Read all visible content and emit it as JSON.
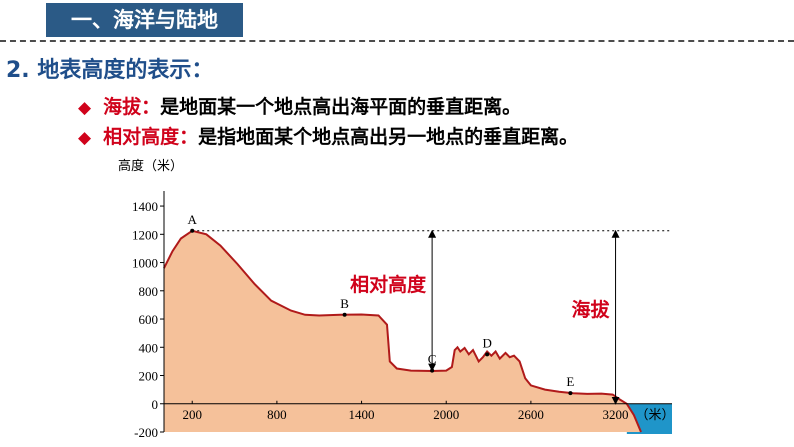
{
  "header": {
    "title": "一、海洋与陆地"
  },
  "section": {
    "heading": "2. 地表高度的表示："
  },
  "bullets": [
    {
      "term": "海拔：",
      "text": "是地面某一个地点高出海平面的垂直距离。"
    },
    {
      "term": "相对高度：",
      "text": "是指地面某个地点高出另一地点的垂直距离。"
    }
  ],
  "chart_data": {
    "type": "area",
    "ylabel": "高度（米）",
    "x_unit": "（米）",
    "yticks": [
      -200,
      0,
      200,
      400,
      600,
      800,
      1000,
      1200,
      1400
    ],
    "xticks": [
      200,
      800,
      1400,
      2000,
      2600,
      3200
    ],
    "ylim": [
      -200,
      1450
    ],
    "xlim": [
      0,
      3600
    ],
    "profile": [
      [
        0,
        960
      ],
      [
        60,
        1080
      ],
      [
        120,
        1170
      ],
      [
        200,
        1225
      ],
      [
        300,
        1200
      ],
      [
        400,
        1120
      ],
      [
        520,
        990
      ],
      [
        640,
        850
      ],
      [
        760,
        730
      ],
      [
        900,
        660
      ],
      [
        1000,
        630
      ],
      [
        1100,
        625
      ],
      [
        1250,
        630
      ],
      [
        1400,
        632
      ],
      [
        1520,
        625
      ],
      [
        1580,
        560
      ],
      [
        1600,
        300
      ],
      [
        1650,
        250
      ],
      [
        1750,
        235
      ],
      [
        1900,
        232
      ],
      [
        2000,
        235
      ],
      [
        2040,
        260
      ],
      [
        2060,
        380
      ],
      [
        2080,
        400
      ],
      [
        2100,
        370
      ],
      [
        2130,
        395
      ],
      [
        2160,
        350
      ],
      [
        2190,
        380
      ],
      [
        2230,
        300
      ],
      [
        2260,
        330
      ],
      [
        2290,
        370
      ],
      [
        2320,
        340
      ],
      [
        2350,
        370
      ],
      [
        2380,
        320
      ],
      [
        2420,
        360
      ],
      [
        2450,
        330
      ],
      [
        2480,
        340
      ],
      [
        2520,
        300
      ],
      [
        2560,
        180
      ],
      [
        2600,
        130
      ],
      [
        2700,
        100
      ],
      [
        2800,
        85
      ],
      [
        2900,
        75
      ],
      [
        3000,
        70
      ],
      [
        3100,
        72
      ],
      [
        3180,
        65
      ],
      [
        3230,
        30
      ],
      [
        3280,
        0
      ],
      [
        3330,
        -80
      ],
      [
        3380,
        -200
      ]
    ],
    "points": [
      {
        "label": "A",
        "x": 200,
        "y": 1225
      },
      {
        "label": "B",
        "x": 1280,
        "y": 630
      },
      {
        "label": "C",
        "x": 1900,
        "y": 235
      },
      {
        "label": "D",
        "x": 2290,
        "y": 350
      },
      {
        "label": "E",
        "x": 2880,
        "y": 75
      }
    ],
    "reference_level": 1225,
    "annotations": [
      {
        "text": "相对高度",
        "from": 235,
        "to": 1225,
        "x": 1900
      },
      {
        "text": "海拔",
        "from": 0,
        "to": 1225,
        "x": 3200
      }
    ],
    "colors": {
      "land": "#f5c19a",
      "outline": "#b01a1a",
      "sea": "#1f95c9",
      "arrow": "#000000",
      "label": "#d0021b"
    }
  }
}
